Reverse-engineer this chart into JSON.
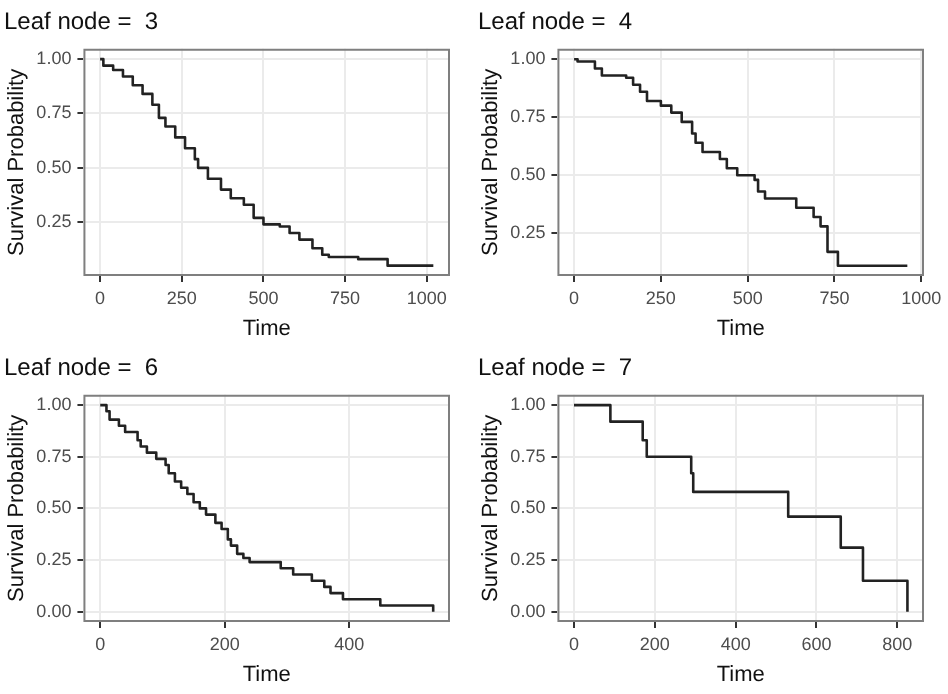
{
  "chart_data": [
    {
      "type": "step",
      "title": "Leaf node =  3",
      "xlabel": "Time",
      "ylabel": "Survival Probability",
      "color": "#222222",
      "grid": true,
      "xlim": [
        -51,
        1071
      ],
      "ylim": [
        0.0025,
        1.0475
      ],
      "xticks": [
        0,
        250,
        500,
        750,
        1000
      ],
      "yticks": [
        {
          "value": 0.25,
          "label": "0.25"
        },
        {
          "value": 0.5,
          "label": "0.50"
        },
        {
          "value": 0.75,
          "label": "0.75"
        },
        {
          "value": 1,
          "label": "1.00"
        }
      ],
      "x": [
        0,
        10,
        40,
        70,
        100,
        130,
        160,
        180,
        200,
        230,
        260,
        290,
        300,
        330,
        370,
        400,
        440,
        470,
        500,
        550,
        580,
        610,
        650,
        680,
        700,
        790,
        880,
        1020
      ],
      "values": [
        1,
        0.97,
        0.95,
        0.92,
        0.88,
        0.84,
        0.79,
        0.73,
        0.69,
        0.64,
        0.59,
        0.54,
        0.5,
        0.45,
        0.4,
        0.36,
        0.33,
        0.27,
        0.24,
        0.23,
        0.2,
        0.17,
        0.13,
        0.1,
        0.09,
        0.08,
        0.05,
        0.05
      ]
    },
    {
      "type": "step",
      "title": "Leaf node =  4",
      "xlabel": "Time",
      "ylabel": "Survival Probability",
      "color": "#222222",
      "grid": true,
      "xlim": [
        -48,
        1008
      ],
      "ylim": [
        0.066,
        1.045
      ],
      "xticks": [
        0,
        250,
        500,
        750,
        1000
      ],
      "yticks": [
        {
          "value": 0.25,
          "label": "0.25"
        },
        {
          "value": 0.5,
          "label": "0.50"
        },
        {
          "value": 0.75,
          "label": "0.75"
        },
        {
          "value": 1,
          "label": "1.00"
        }
      ],
      "x": [
        0,
        10,
        60,
        80,
        150,
        170,
        190,
        210,
        250,
        280,
        310,
        340,
        350,
        370,
        420,
        440,
        470,
        520,
        530,
        550,
        640,
        690,
        710,
        730,
        760,
        960
      ],
      "values": [
        1,
        0.99,
        0.96,
        0.93,
        0.92,
        0.89,
        0.86,
        0.82,
        0.8,
        0.77,
        0.73,
        0.68,
        0.64,
        0.6,
        0.57,
        0.53,
        0.5,
        0.48,
        0.43,
        0.4,
        0.36,
        0.32,
        0.28,
        0.17,
        0.11,
        0.11
      ]
    },
    {
      "type": "step",
      "title": "Leaf node =  6",
      "xlabel": "Time",
      "ylabel": "Survival Probability",
      "color": "#222222",
      "grid": true,
      "xlim": [
        -27,
        562
      ],
      "ylim": [
        -0.05,
        1.05
      ],
      "xticks": [
        0,
        200,
        400
      ],
      "yticks": [
        {
          "value": 0,
          "label": "0.00"
        },
        {
          "value": 0.25,
          "label": "0.25"
        },
        {
          "value": 0.5,
          "label": "0.50"
        },
        {
          "value": 0.75,
          "label": "0.75"
        },
        {
          "value": 1,
          "label": "1.00"
        }
      ],
      "x": [
        0,
        10,
        15,
        30,
        40,
        60,
        65,
        75,
        90,
        105,
        110,
        120,
        130,
        140,
        150,
        160,
        170,
        185,
        195,
        205,
        210,
        220,
        230,
        240,
        290,
        310,
        340,
        360,
        370,
        390,
        450,
        535
      ],
      "values": [
        1,
        0.97,
        0.93,
        0.9,
        0.87,
        0.83,
        0.8,
        0.77,
        0.74,
        0.71,
        0.67,
        0.63,
        0.6,
        0.57,
        0.53,
        0.5,
        0.47,
        0.43,
        0.4,
        0.35,
        0.32,
        0.28,
        0.26,
        0.24,
        0.21,
        0.18,
        0.15,
        0.12,
        0.09,
        0.06,
        0.03,
        0
      ]
    },
    {
      "type": "step",
      "title": "Leaf node =  7",
      "xlabel": "Time",
      "ylabel": "Survival Probability",
      "color": "#222222",
      "grid": true,
      "xlim": [
        -41,
        866
      ],
      "ylim": [
        -0.05,
        1.05
      ],
      "xticks": [
        0,
        200,
        400,
        600,
        800
      ],
      "yticks": [
        {
          "value": 0,
          "label": "0.00"
        },
        {
          "value": 0.25,
          "label": "0.25"
        },
        {
          "value": 0.5,
          "label": "0.50"
        },
        {
          "value": 0.75,
          "label": "0.75"
        },
        {
          "value": 1,
          "label": "1.00"
        }
      ],
      "x": [
        0,
        90,
        170,
        180,
        290,
        295,
        530,
        660,
        715,
        825
      ],
      "values": [
        1,
        0.92,
        0.83,
        0.75,
        0.67,
        0.58,
        0.46,
        0.31,
        0.15,
        0
      ]
    }
  ]
}
